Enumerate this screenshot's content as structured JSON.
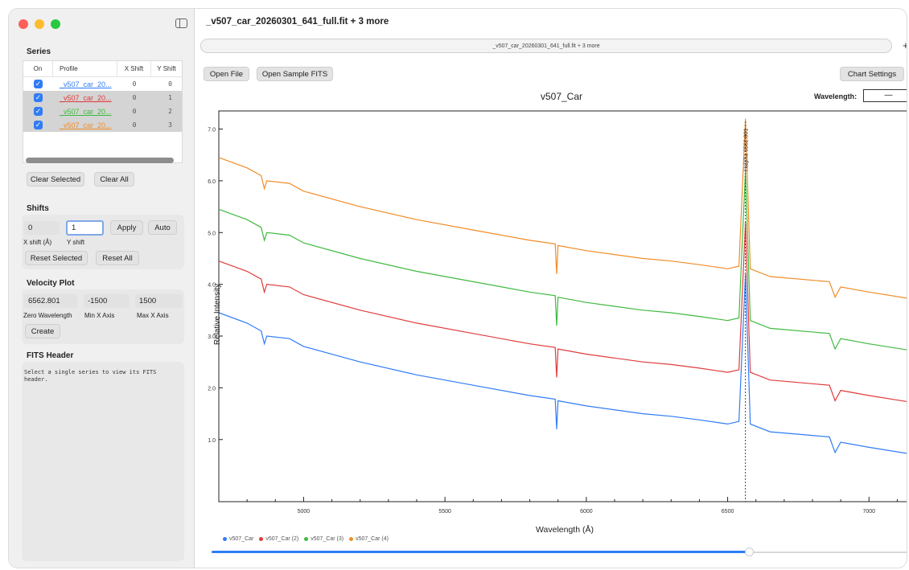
{
  "window": {
    "title": "_v507_car_20260301_641_full.fit + 3 more",
    "tab_label": "_v507_car_20260301_641_full.fit + 3 more",
    "plus_label": "+"
  },
  "sidebar": {
    "series_title": "Series",
    "columns": [
      "On",
      "Profile",
      "X Shift",
      "Y Shift"
    ],
    "rows": [
      {
        "profile": "_v507_car_20...",
        "x_shift": "0",
        "y_shift": "0",
        "color": "#2f7cf6",
        "selected": false
      },
      {
        "profile": "_v507_car_20...",
        "x_shift": "0",
        "y_shift": "1",
        "color": "#e03c3c",
        "selected": true
      },
      {
        "profile": "_v507_car_20...",
        "x_shift": "0",
        "y_shift": "2",
        "color": "#3fba3f",
        "selected": true
      },
      {
        "profile": "_v507_car_20...",
        "x_shift": "0",
        "y_shift": "3",
        "color": "#f28c28",
        "selected": true
      }
    ],
    "clear_selected": "Clear Selected",
    "clear_all": "Clear All",
    "shifts_title": "Shifts",
    "x_shift_value": "0",
    "y_shift_value": "1",
    "apply": "Apply",
    "auto": "Auto",
    "x_shift_label": "X shift (Å)",
    "y_shift_label": "Y shift",
    "reset_selected": "Reset Selected",
    "reset_all": "Reset All",
    "velocity_title": "Velocity Plot",
    "zero_wavelength": "6562.801",
    "min_x": "-1500",
    "max_x": "1500",
    "zero_wavelength_label": "Zero Wavelength",
    "min_x_label": "Min X Axis",
    "max_x_label": "Max X Axis",
    "create": "Create",
    "fits_title": "FITS Header",
    "fits_text": "Select a single series to view its FITS header."
  },
  "toolbar": {
    "open_file": "Open File",
    "open_sample": "Open Sample FITS",
    "chart_settings": "Chart Settings"
  },
  "chart_header": {
    "wavelength_label": "Wavelength:",
    "wavelength_value": "—"
  },
  "chart_data": {
    "type": "line",
    "title": "v507_Car",
    "xlabel": "Wavelength (Å)",
    "ylabel": "Relative Intensity",
    "xlim": [
      4700,
      7150
    ],
    "ylim": [
      -0.2,
      7.35
    ],
    "x_ticks": [
      5000,
      5500,
      6000,
      6500,
      7000
    ],
    "y_ticks": [
      "1.0",
      "2.0",
      "3.0",
      "4.0",
      "5.0",
      "6.0",
      "7.0"
    ],
    "marker_label": "Halpha 6562.801",
    "marker_x": 6562.801,
    "series": [
      {
        "name": "v507_Car",
        "color": "#2f7cf6",
        "offset": 0,
        "x": [
          4700,
          4800,
          4850,
          4861,
          4870,
          4950,
          5000,
          5200,
          5400,
          5600,
          5800,
          5890,
          5895,
          5900,
          6000,
          6200,
          6300,
          6400,
          6500,
          6540,
          6563,
          6580,
          6650,
          6860,
          6880,
          6900,
          7000,
          7150
        ],
        "y": [
          3.45,
          3.25,
          3.1,
          2.85,
          3.0,
          2.95,
          2.8,
          2.5,
          2.25,
          2.05,
          1.85,
          1.78,
          1.2,
          1.75,
          1.65,
          1.5,
          1.45,
          1.38,
          1.3,
          1.35,
          4.2,
          1.3,
          1.15,
          1.05,
          0.75,
          0.95,
          0.85,
          0.72
        ]
      },
      {
        "name": "v507_Car (2)",
        "color": "#e03c3c",
        "offset": 1,
        "x": [
          4700,
          4800,
          4850,
          4861,
          4870,
          4950,
          5000,
          5200,
          5400,
          5600,
          5800,
          5890,
          5895,
          5900,
          6000,
          6200,
          6300,
          6400,
          6500,
          6540,
          6563,
          6580,
          6650,
          6860,
          6880,
          6900,
          7000,
          7150
        ],
        "y": [
          3.45,
          3.25,
          3.1,
          2.85,
          3.0,
          2.95,
          2.8,
          2.5,
          2.25,
          2.05,
          1.85,
          1.78,
          1.2,
          1.75,
          1.65,
          1.5,
          1.45,
          1.38,
          1.3,
          1.35,
          4.2,
          1.3,
          1.15,
          1.05,
          0.75,
          0.95,
          0.85,
          0.72
        ]
      },
      {
        "name": "v507_Car (3)",
        "color": "#3fba3f",
        "offset": 2,
        "x": [
          4700,
          4800,
          4850,
          4861,
          4870,
          4950,
          5000,
          5200,
          5400,
          5600,
          5800,
          5890,
          5895,
          5900,
          6000,
          6200,
          6300,
          6400,
          6500,
          6540,
          6563,
          6580,
          6650,
          6860,
          6880,
          6900,
          7000,
          7150
        ],
        "y": [
          3.45,
          3.25,
          3.1,
          2.85,
          3.0,
          2.95,
          2.8,
          2.5,
          2.25,
          2.05,
          1.85,
          1.78,
          1.2,
          1.75,
          1.65,
          1.5,
          1.45,
          1.38,
          1.3,
          1.35,
          4.2,
          1.3,
          1.15,
          1.05,
          0.75,
          0.95,
          0.85,
          0.72
        ]
      },
      {
        "name": "v507_Car (4)",
        "color": "#f28c28",
        "offset": 3,
        "x": [
          4700,
          4800,
          4850,
          4861,
          4870,
          4950,
          5000,
          5200,
          5400,
          5600,
          5800,
          5890,
          5895,
          5900,
          6000,
          6200,
          6300,
          6400,
          6500,
          6540,
          6563,
          6580,
          6650,
          6860,
          6880,
          6900,
          7000,
          7150
        ],
        "y": [
          3.45,
          3.25,
          3.1,
          2.85,
          3.0,
          2.95,
          2.8,
          2.5,
          2.25,
          2.05,
          1.85,
          1.78,
          1.2,
          1.75,
          1.65,
          1.5,
          1.45,
          1.38,
          1.3,
          1.35,
          4.2,
          1.3,
          1.15,
          1.05,
          0.75,
          0.95,
          0.85,
          0.72
        ]
      }
    ],
    "legend": [
      "v507_Car",
      "v507_Car (2)",
      "v507_Car (3)",
      "v507_Car (4)"
    ],
    "legend_position": "bottom-left"
  },
  "range_slider": {
    "value_fraction": 0.77
  }
}
